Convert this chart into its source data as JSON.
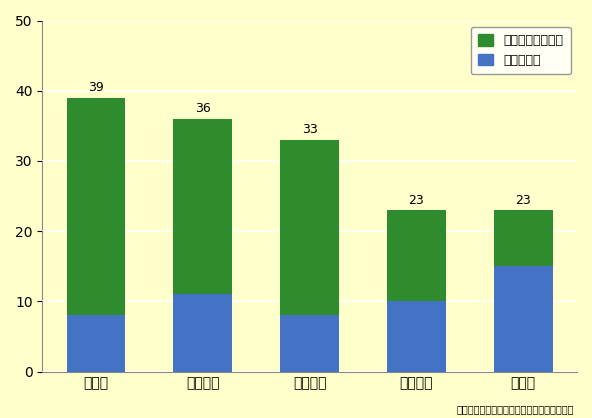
{
  "categories": [
    "ドイツ",
    "フランス",
    "イギリス",
    "アメリカ",
    "日　本"
  ],
  "total_values": [
    39,
    36,
    33,
    23,
    23
  ],
  "holiday_blue": [
    8,
    11,
    8,
    10,
    15
  ],
  "background_color": "#FFFFCC",
  "bar_color_green": "#2E8B2E",
  "bar_color_blue": "#4472C4",
  "bar_width": 0.55,
  "ylim": [
    0,
    50
  ],
  "yticks": [
    0,
    10,
    20,
    30,
    40,
    50
  ],
  "legend_label_green": "有給休暨取得日数",
  "legend_label_blue": "祝祭日日数",
  "source_text": "出典：内閣府男女共同参画局資料より作成。",
  "annotation_fontsize": 9,
  "label_fontsize": 10,
  "tick_fontsize": 10
}
